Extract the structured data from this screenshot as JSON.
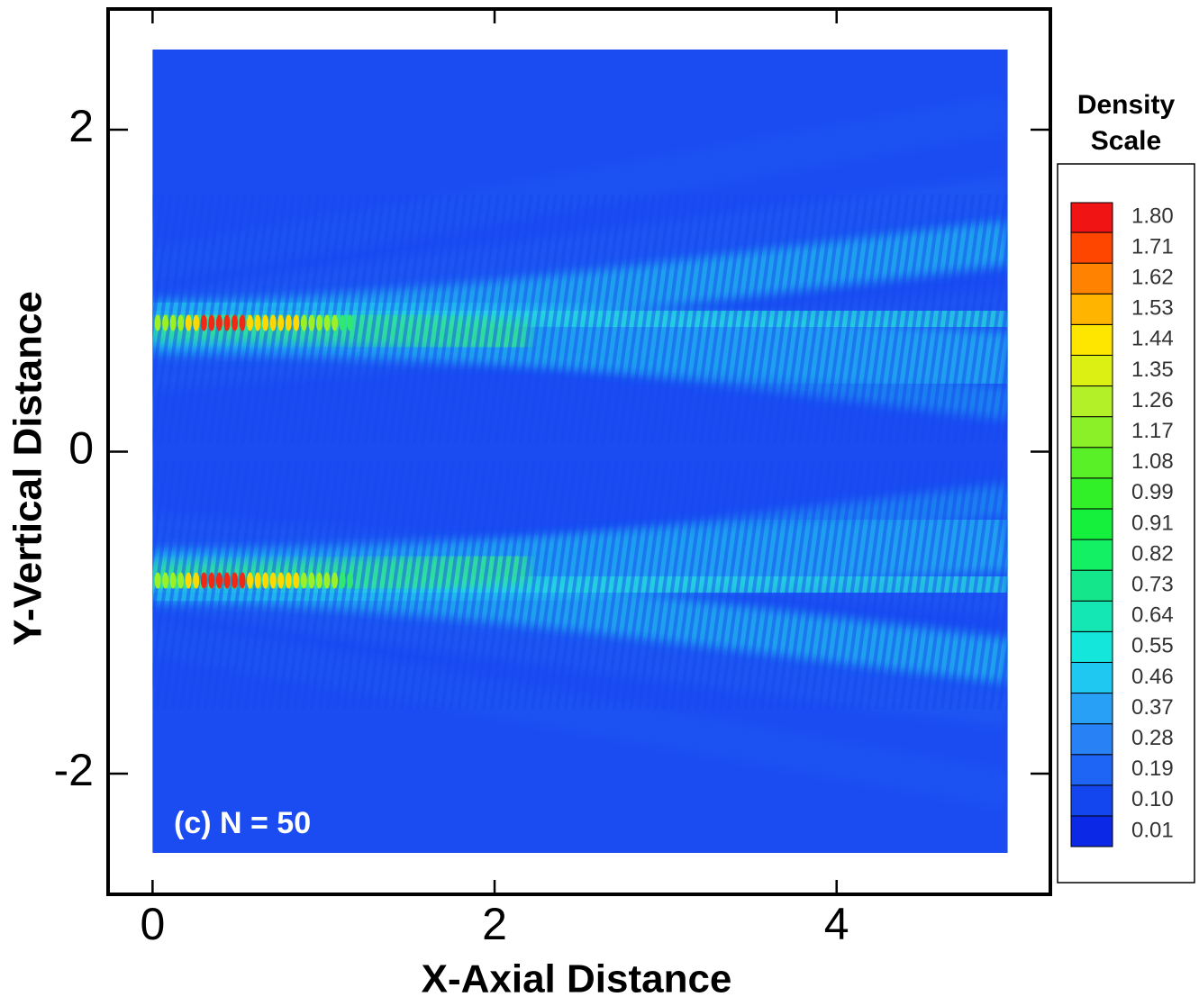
{
  "chart_data": {
    "type": "contour",
    "annotation": "(c) N = 50",
    "x_label": "X-Axial Distance",
    "y_label": "Y-Vertical Distance",
    "xlim": [
      -0.26,
      5.25
    ],
    "ylim": [
      -2.75,
      2.75
    ],
    "xticks": [
      0,
      2,
      4
    ],
    "yticks": [
      -2,
      0,
      2
    ],
    "field_xlim": [
      0,
      5
    ],
    "field_ylim": [
      -2.5,
      2.5
    ],
    "colorbar": {
      "title": [
        "Density",
        "Scale"
      ],
      "levels": [
        0.01,
        {
          "value": 0.1,
          "label": "0.10"
        },
        0.19,
        0.28,
        0.37,
        0.46,
        0.55,
        0.64,
        0.73,
        0.82,
        0.91,
        0.99,
        1.08,
        1.17,
        1.26,
        1.35,
        1.44,
        1.53,
        1.62,
        1.71,
        {
          "value": 1.8,
          "label": "1.80"
        }
      ],
      "colors": [
        "#0a28e6",
        "#1446f0",
        "#1e64f5",
        "#2882f5",
        "#28a0f5",
        "#1ec8f0",
        "#14e6dc",
        "#14e6b4",
        "#14e68c",
        "#14f064",
        "#14f03c",
        "#32f028",
        "#5af028",
        "#8cf028",
        "#b4f028",
        "#dcf014",
        "#ffe600",
        "#ffb400",
        "#ff8200",
        "#ff4600",
        "#f01414"
      ]
    }
  }
}
